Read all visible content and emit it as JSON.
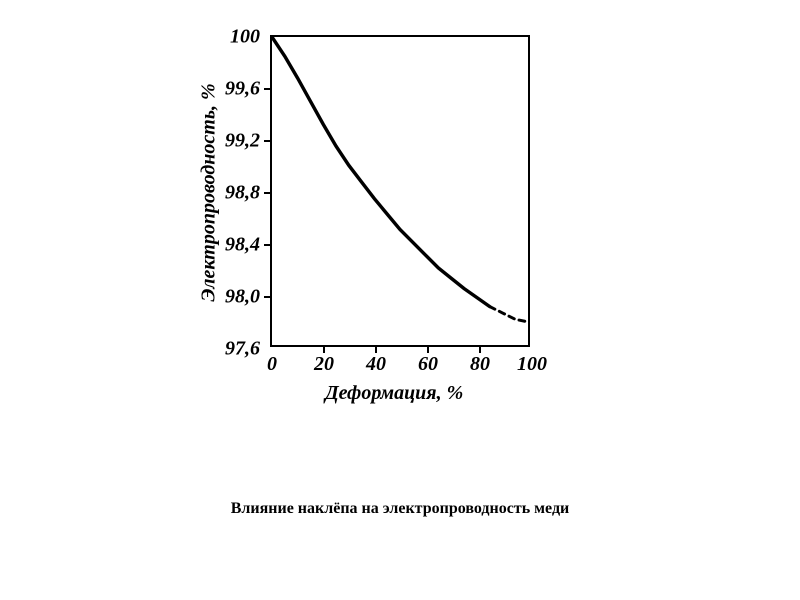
{
  "chart": {
    "type": "line",
    "caption": "Влияние наклёпа на электропроводность меди",
    "caption_fontsize": 16,
    "background_color": "#ffffff",
    "axis_color": "#000000",
    "axis_width": 2,
    "curve": {
      "x": [
        0,
        5,
        10,
        15,
        20,
        25,
        30,
        35,
        40,
        45,
        50,
        55,
        60,
        65,
        70,
        75,
        80,
        85
      ],
      "y": [
        100,
        99.85,
        99.68,
        99.5,
        99.32,
        99.15,
        99.0,
        98.87,
        98.74,
        98.62,
        98.5,
        98.4,
        98.3,
        98.2,
        98.12,
        98.04,
        97.97,
        97.9
      ],
      "color": "#000000",
      "width": 3.5
    },
    "dashed_curve": {
      "x": [
        85,
        90,
        95,
        100
      ],
      "y": [
        97.9,
        97.85,
        97.8,
        97.78
      ],
      "color": "#000000",
      "width": 3,
      "dash": "6,5"
    },
    "x_axis": {
      "title": "Деформация, %",
      "title_fontsize": 20,
      "ticks": [
        0,
        20,
        40,
        60,
        80,
        100
      ],
      "labels": [
        "0",
        "20",
        "40",
        "60",
        "80",
        "100"
      ],
      "label_fontsize": 20,
      "min": 0,
      "max": 100
    },
    "y_axis": {
      "title": "Электропроводность, %",
      "title_fontsize": 20,
      "ticks": [
        97.6,
        98.0,
        98.4,
        98.8,
        99.2,
        99.6,
        100
      ],
      "labels": [
        "97,6",
        "98,0",
        "98,4",
        "98,8",
        "99,2",
        "99,6",
        "100"
      ],
      "label_fontsize": 20,
      "min": 97.6,
      "max": 100
    }
  }
}
